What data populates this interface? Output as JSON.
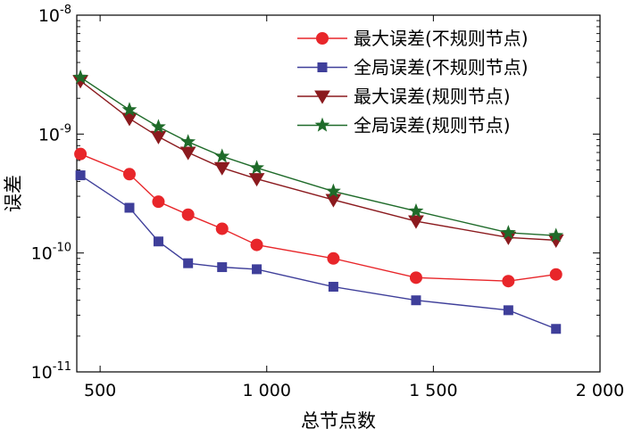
{
  "chart_data": {
    "type": "line",
    "title": "",
    "xlabel": "总节点数",
    "ylabel": "误差",
    "xlim": [
      430,
      2000
    ],
    "ylim": [
      1e-11,
      1e-08
    ],
    "y_scale": "log",
    "x_ticks": [
      {
        "value": 500,
        "label": "500"
      },
      {
        "value": 1000,
        "label": "1 000"
      },
      {
        "value": 1500,
        "label": "1 500"
      },
      {
        "value": 2000,
        "label": "2 000"
      }
    ],
    "y_ticks": [
      {
        "value": 1e-08,
        "base": "10",
        "exp": "-8"
      },
      {
        "value": 1e-09,
        "base": "10",
        "exp": "-9"
      },
      {
        "value": 1e-10,
        "base": "10",
        "exp": "-10"
      },
      {
        "value": 1e-11,
        "base": "10",
        "exp": "-11"
      }
    ],
    "legend_position": "top-right",
    "grid": false,
    "x": [
      441,
      588,
      675,
      764,
      866,
      970,
      1200,
      1448,
      1725,
      1868
    ],
    "series": [
      {
        "name": "最大误差(不规则节点)",
        "color": "#e8262a",
        "marker": "circle",
        "values": [
          6.8e-10,
          4.6e-10,
          2.7e-10,
          2.1e-10,
          1.6e-10,
          1.17e-10,
          9e-11,
          6.2e-11,
          5.8e-11,
          6.6e-11
        ]
      },
      {
        "name": "全局误差(不规则节点)",
        "color": "#3f3f9a",
        "marker": "square",
        "values": [
          4.5e-10,
          2.4e-10,
          1.25e-10,
          8.2e-11,
          7.6e-11,
          7.3e-11,
          5.2e-11,
          4e-11,
          3.3e-11,
          2.3e-11
        ]
      },
      {
        "name": "最大误差(规则节点)",
        "color": "#8b1a1e",
        "marker": "triangle-down",
        "values": [
          2.8e-09,
          1.35e-09,
          9.5e-10,
          7e-10,
          5.2e-10,
          4.2e-10,
          2.8e-10,
          1.85e-10,
          1.35e-10,
          1.28e-10
        ]
      },
      {
        "name": "全局误差(规则节点)",
        "color": "#1f6b2a",
        "marker": "star",
        "values": [
          3e-09,
          1.6e-09,
          1.15e-09,
          8.6e-10,
          6.5e-10,
          5.2e-10,
          3.3e-10,
          2.25e-10,
          1.48e-10,
          1.4e-10
        ]
      }
    ]
  }
}
